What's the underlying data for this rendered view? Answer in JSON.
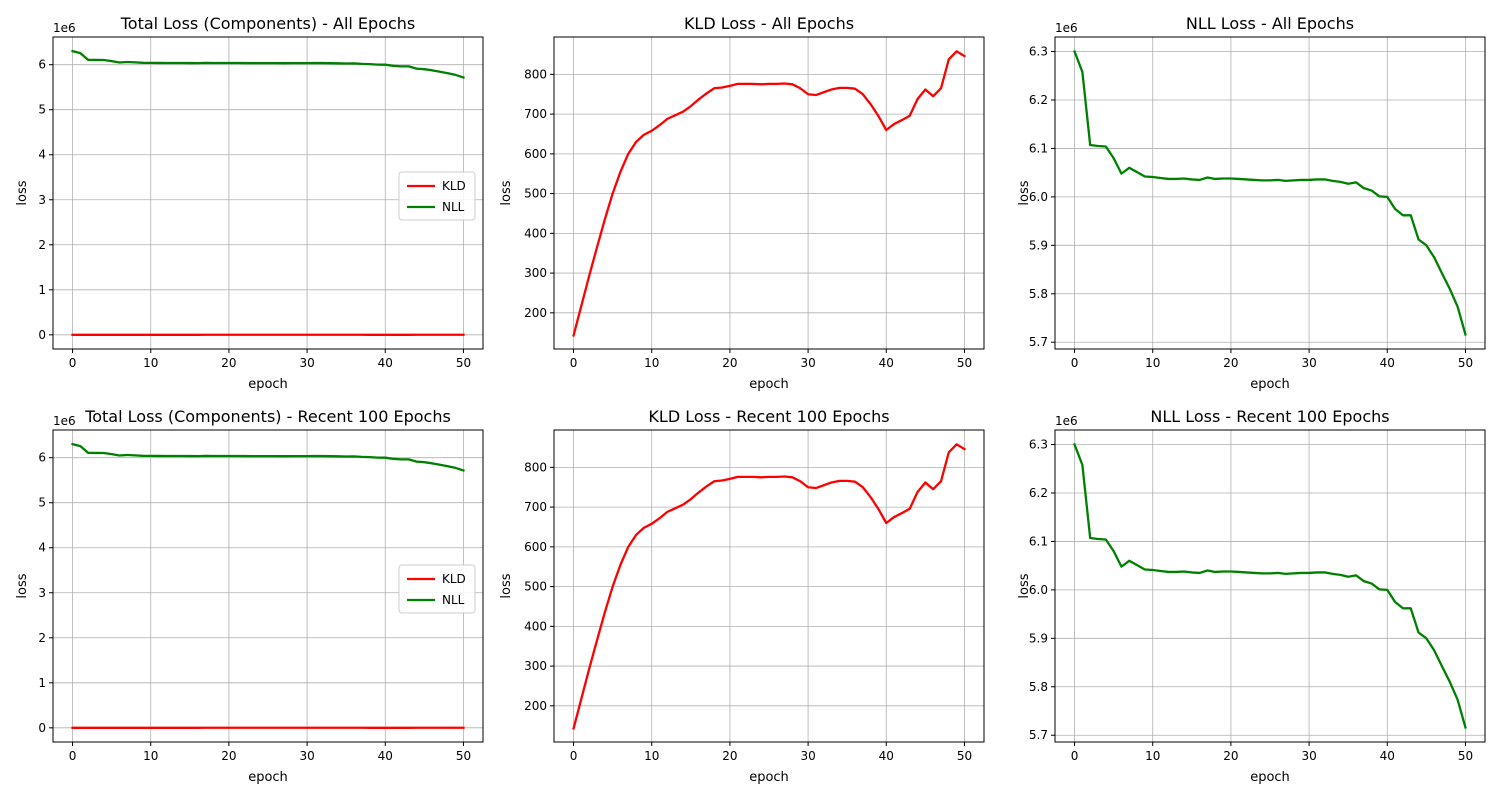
{
  "figure": {
    "background": "#ffffff",
    "grid_color": "#b0b0b0",
    "axis_color": "#000000"
  },
  "chart_data": [
    {
      "id": "total-all",
      "type": "line",
      "title": "Total Loss (Components) - All Epochs",
      "xlabel": "epoch",
      "ylabel": "loss",
      "xlim": [
        -2.5,
        52.5
      ],
      "ylim": [
        -0.315,
        6.615
      ],
      "xticks": [
        0,
        10,
        20,
        30,
        40,
        50
      ],
      "xtick_labels": [
        "0",
        "10",
        "20",
        "30",
        "40",
        "50"
      ],
      "yticks": [
        0,
        1,
        2,
        3,
        4,
        5,
        6
      ],
      "ytick_labels": [
        "0",
        "1",
        "2",
        "3",
        "4",
        "5",
        "6"
      ],
      "offset_text": "1e6",
      "grid": true,
      "legend": "center-right",
      "series": [
        {
          "name": "KLD",
          "color": "#ff0000",
          "source": "kld"
        },
        {
          "name": "NLL",
          "color": "#008000",
          "source": "nll"
        }
      ]
    },
    {
      "id": "kld-all",
      "type": "line",
      "title": "KLD Loss - All Epochs",
      "xlabel": "epoch",
      "ylabel": "loss",
      "xlim": [
        -2.5,
        52.5
      ],
      "ylim": [
        109,
        894
      ],
      "xticks": [
        0,
        10,
        20,
        30,
        40,
        50
      ],
      "xtick_labels": [
        "0",
        "10",
        "20",
        "30",
        "40",
        "50"
      ],
      "yticks": [
        200,
        300,
        400,
        500,
        600,
        700,
        800
      ],
      "ytick_labels": [
        "200",
        "300",
        "400",
        "500",
        "600",
        "700",
        "800"
      ],
      "offset_text": "",
      "grid": true,
      "legend": "none",
      "series": [
        {
          "color": "#ff0000",
          "source": "kld"
        }
      ]
    },
    {
      "id": "nll-all",
      "type": "line",
      "title": "NLL Loss - All Epochs",
      "xlabel": "epoch",
      "ylabel": "loss",
      "xlim": [
        -2.5,
        52.5
      ],
      "ylim": [
        5.686,
        6.33
      ],
      "xticks": [
        0,
        10,
        20,
        30,
        40,
        50
      ],
      "xtick_labels": [
        "0",
        "10",
        "20",
        "30",
        "40",
        "50"
      ],
      "yticks": [
        5.7,
        5.8,
        5.9,
        6.0,
        6.1,
        6.2,
        6.3
      ],
      "ytick_labels": [
        "5.7",
        "5.8",
        "5.9",
        "6.0",
        "6.1",
        "6.2",
        "6.3"
      ],
      "y_scale": 1000000,
      "offset_text": "1e6",
      "grid": true,
      "legend": "none",
      "series": [
        {
          "color": "#008000",
          "source": "nll"
        }
      ]
    },
    {
      "id": "total-recent",
      "type": "line",
      "title": "Total Loss (Components) - Recent 100 Epochs",
      "xlabel": "epoch",
      "ylabel": "loss",
      "xlim": [
        -2.5,
        52.5
      ],
      "ylim": [
        -0.315,
        6.615
      ],
      "xticks": [
        0,
        10,
        20,
        30,
        40,
        50
      ],
      "xtick_labels": [
        "0",
        "10",
        "20",
        "30",
        "40",
        "50"
      ],
      "yticks": [
        0,
        1,
        2,
        3,
        4,
        5,
        6
      ],
      "ytick_labels": [
        "0",
        "1",
        "2",
        "3",
        "4",
        "5",
        "6"
      ],
      "offset_text": "1e6",
      "grid": true,
      "legend": "center-right",
      "series": [
        {
          "name": "KLD",
          "color": "#ff0000",
          "source": "kld"
        },
        {
          "name": "NLL",
          "color": "#008000",
          "source": "nll"
        }
      ]
    },
    {
      "id": "kld-recent",
      "type": "line",
      "title": "KLD Loss - Recent 100 Epochs",
      "xlabel": "epoch",
      "ylabel": "loss",
      "xlim": [
        -2.5,
        52.5
      ],
      "ylim": [
        109,
        894
      ],
      "xticks": [
        0,
        10,
        20,
        30,
        40,
        50
      ],
      "xtick_labels": [
        "0",
        "10",
        "20",
        "30",
        "40",
        "50"
      ],
      "yticks": [
        200,
        300,
        400,
        500,
        600,
        700,
        800
      ],
      "ytick_labels": [
        "200",
        "300",
        "400",
        "500",
        "600",
        "700",
        "800"
      ],
      "offset_text": "",
      "grid": true,
      "legend": "none",
      "series": [
        {
          "color": "#ff0000",
          "source": "kld"
        }
      ]
    },
    {
      "id": "nll-recent",
      "type": "line",
      "title": "NLL Loss - Recent 100 Epochs",
      "xlabel": "epoch",
      "ylabel": "loss",
      "xlim": [
        -2.5,
        52.5
      ],
      "ylim": [
        5.686,
        6.33
      ],
      "xticks": [
        0,
        10,
        20,
        30,
        40,
        50
      ],
      "xtick_labels": [
        "0",
        "10",
        "20",
        "30",
        "40",
        "50"
      ],
      "yticks": [
        5.7,
        5.8,
        5.9,
        6.0,
        6.1,
        6.2,
        6.3
      ],
      "ytick_labels": [
        "5.7",
        "5.8",
        "5.9",
        "6.0",
        "6.1",
        "6.2",
        "6.3"
      ],
      "y_scale": 1000000,
      "offset_text": "1e6",
      "grid": true,
      "legend": "none",
      "series": [
        {
          "color": "#008000",
          "source": "nll"
        }
      ]
    }
  ],
  "series_values": {
    "epochs": [
      0,
      1,
      2,
      3,
      4,
      5,
      6,
      7,
      8,
      9,
      10,
      11,
      12,
      13,
      14,
      15,
      16,
      17,
      18,
      19,
      20,
      21,
      22,
      23,
      24,
      25,
      26,
      27,
      28,
      29,
      30,
      31,
      32,
      33,
      34,
      35,
      36,
      37,
      38,
      39,
      40,
      41,
      42,
      43,
      44,
      45,
      46,
      47,
      48,
      49,
      50
    ],
    "kld": [
      143,
      218,
      293,
      365,
      435,
      500,
      555,
      600,
      630,
      648,
      658,
      672,
      688,
      697,
      706,
      720,
      737,
      752,
      765,
      767,
      771,
      776,
      776,
      776,
      775,
      776,
      776,
      777,
      775,
      765,
      750,
      748,
      755,
      762,
      766,
      766,
      764,
      750,
      725,
      695,
      660,
      675,
      685,
      696,
      738,
      762,
      745,
      765,
      838,
      858,
      846
    ],
    "nll": [
      6300000,
      6258000,
      6107000,
      6105000,
      6104000,
      6080000,
      6048000,
      6060000,
      6051000,
      6042000,
      6041000,
      6039000,
      6037000,
      6037000,
      6038000,
      6036000,
      6035000,
      6040000,
      6037000,
      6038000,
      6038000,
      6037000,
      6036000,
      6035000,
      6034000,
      6034000,
      6035000,
      6033000,
      6034000,
      6035000,
      6035000,
      6036000,
      6036000,
      6033000,
      6031000,
      6027000,
      6030000,
      6018000,
      6013000,
      6001000,
      6000000,
      5975000,
      5962000,
      5962000,
      5912000,
      5900000,
      5875000,
      5842000,
      5810000,
      5773000,
      5716000
    ]
  }
}
